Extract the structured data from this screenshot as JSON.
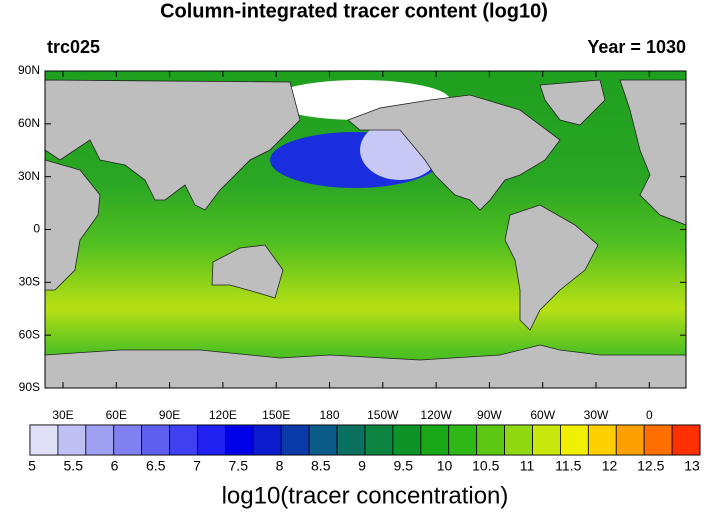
{
  "title": "Column-integrated tracer content (log10)",
  "left_string": "trc025",
  "right_string": "Year = 1030",
  "lat_labels": [
    "90N",
    "60N",
    "30N",
    "0",
    "30S",
    "60S",
    "90S"
  ],
  "lon_labels": [
    "30E",
    "60E",
    "90E",
    "120E",
    "150E",
    "180",
    "150W",
    "120W",
    "90W",
    "60W",
    "30W",
    "0"
  ],
  "colorbar": {
    "labels": [
      5,
      5.5,
      6,
      6.5,
      7,
      7.5,
      8,
      8.5,
      9,
      9.5,
      10,
      10.5,
      11,
      11.5,
      12,
      12.5,
      13
    ],
    "colors": [
      "#e0e0f8",
      "#c0c0f5",
      "#a0a0f2",
      "#8080f0",
      "#6060f0",
      "#4040f0",
      "#2020f0",
      "#0000e8",
      "#0a1ccc",
      "#0a3aa8",
      "#0b5a88",
      "#0a7060",
      "#0a8440",
      "#0d9428",
      "#18a818",
      "#30b818",
      "#5cc814",
      "#90d812",
      "#c8e80e",
      "#f0f000",
      "#ffd000",
      "#ffa000",
      "#ff7000",
      "#ff3000"
    ],
    "title": "log10(tracer concentration)"
  }
}
